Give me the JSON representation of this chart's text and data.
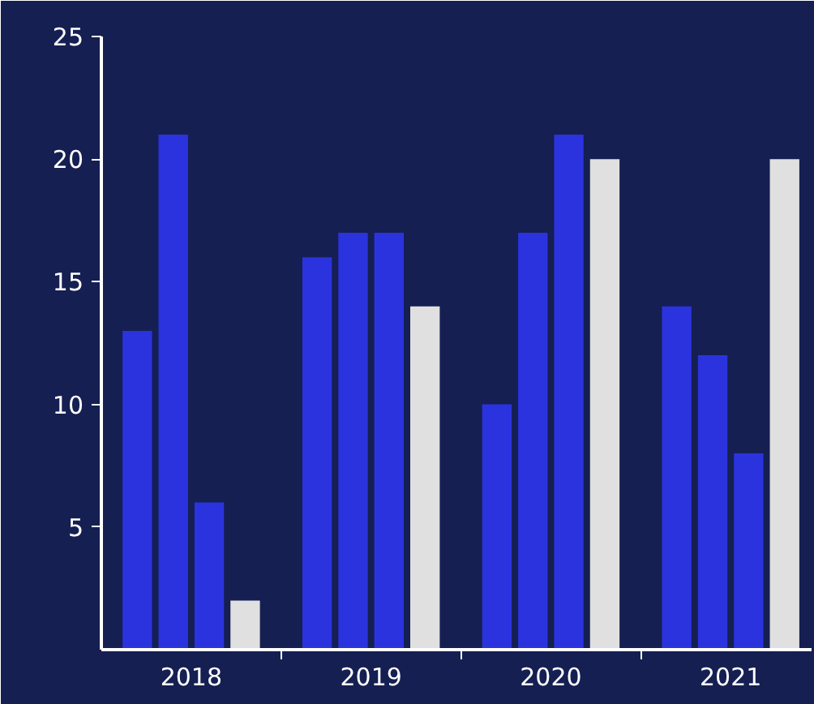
{
  "chart_data": {
    "type": "bar",
    "categories": [
      "2018",
      "2019",
      "2020",
      "2021"
    ],
    "series": [
      {
        "color": "#2b33df",
        "values": [
          13,
          16,
          10,
          14
        ]
      },
      {
        "color": "#2b33df",
        "values": [
          21,
          17,
          17,
          12
        ]
      },
      {
        "color": "#2b33df",
        "values": [
          6,
          17,
          21,
          8
        ]
      },
      {
        "color": "#e0e0e0",
        "values": [
          2,
          14,
          20,
          20
        ]
      }
    ],
    "ylim": [
      0,
      25
    ],
    "yticks": [
      5,
      10,
      15,
      20,
      25
    ],
    "grid": false
  }
}
